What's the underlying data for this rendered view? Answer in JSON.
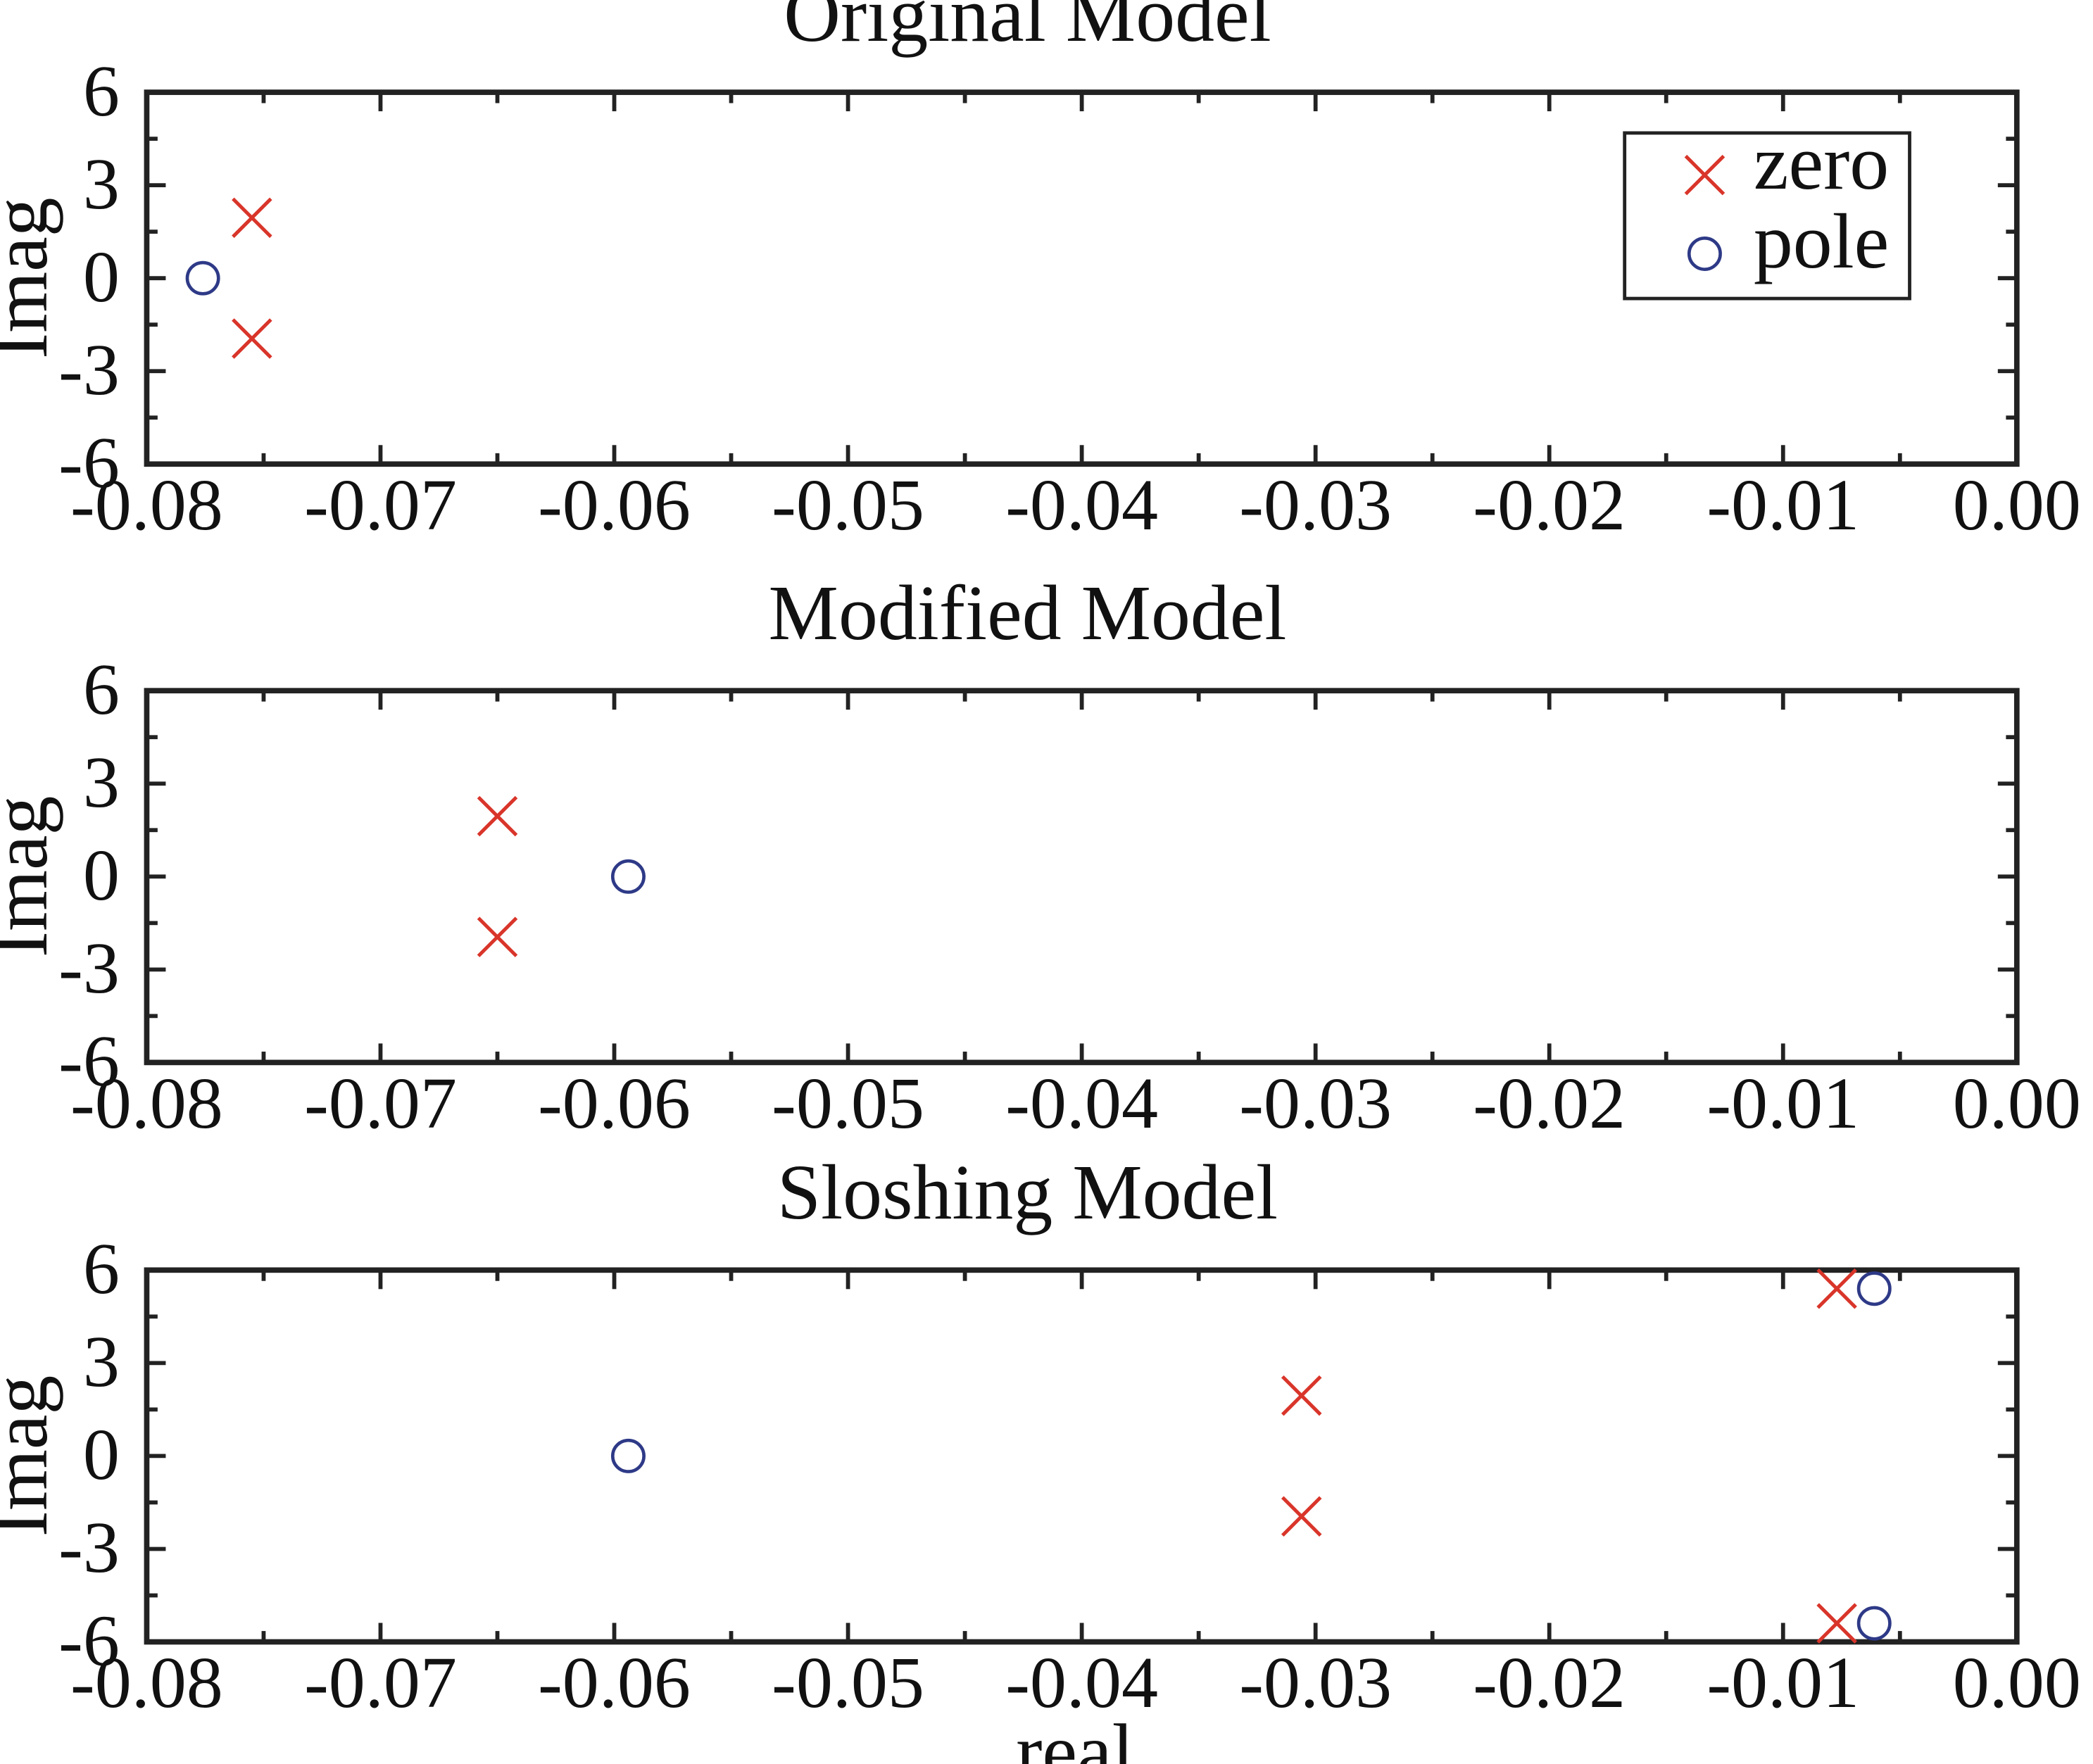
{
  "chart_data": [
    {
      "type": "scatter",
      "title": "Original Model",
      "xlabel": "",
      "ylabel": "Imag",
      "xlim": [
        -0.08,
        0.0
      ],
      "ylim": [
        -6,
        6
      ],
      "xticks": [
        "-0.08",
        "-0.07",
        "-0.06",
        "-0.05",
        "-0.04",
        "-0.03",
        "-0.02",
        "-0.01",
        "0.00"
      ],
      "yticks": [
        "6",
        "3",
        "0",
        "-3",
        "-6"
      ],
      "grid": false,
      "legend": {
        "placement": "top-right",
        "entries": [
          "zero",
          "pole"
        ]
      },
      "series": [
        {
          "name": "zero",
          "marker": "x",
          "color": "#d9352a",
          "points": [
            [
              -0.0755,
              1.95
            ],
            [
              -0.0755,
              -1.95
            ]
          ]
        },
        {
          "name": "pole",
          "marker": "o",
          "color": "#2e3a87",
          "points": [
            [
              -0.0776,
              0.0
            ]
          ]
        }
      ]
    },
    {
      "type": "scatter",
      "title": "Modified Model",
      "xlabel": "",
      "ylabel": "Imag",
      "xlim": [
        -0.08,
        0.0
      ],
      "ylim": [
        -6,
        6
      ],
      "xticks": [
        "-0.08",
        "-0.07",
        "-0.06",
        "-0.05",
        "-0.04",
        "-0.03",
        "-0.02",
        "-0.01",
        "0.00"
      ],
      "yticks": [
        "6",
        "3",
        "0",
        "-3",
        "-6"
      ],
      "grid": false,
      "series": [
        {
          "name": "zero",
          "marker": "x",
          "color": "#d9352a",
          "points": [
            [
              -0.065,
              1.95
            ],
            [
              -0.065,
              -1.95
            ]
          ]
        },
        {
          "name": "pole",
          "marker": "o",
          "color": "#2e3a87",
          "points": [
            [
              -0.0594,
              0.0
            ]
          ]
        }
      ]
    },
    {
      "type": "scatter",
      "title": "Sloshing Model",
      "xlabel": "real",
      "ylabel": "Imag",
      "xlim": [
        -0.08,
        0.0
      ],
      "ylim": [
        -6,
        6
      ],
      "xticks": [
        "-0.08",
        "-0.07",
        "-0.06",
        "-0.05",
        "-0.04",
        "-0.03",
        "-0.02",
        "-0.01",
        "0.00"
      ],
      "yticks": [
        "6",
        "3",
        "0",
        "-3",
        "-6"
      ],
      "grid": false,
      "series": [
        {
          "name": "zero",
          "marker": "x",
          "color": "#d9352a",
          "points": [
            [
              -0.0306,
              1.95
            ],
            [
              -0.0306,
              -1.95
            ],
            [
              -0.0077,
              5.4
            ],
            [
              -0.0077,
              -5.4
            ]
          ]
        },
        {
          "name": "pole",
          "marker": "o",
          "color": "#2e3a87",
          "points": [
            [
              -0.0594,
              0.0
            ],
            [
              -0.0061,
              5.4
            ],
            [
              -0.0061,
              -5.4
            ]
          ]
        }
      ]
    }
  ]
}
